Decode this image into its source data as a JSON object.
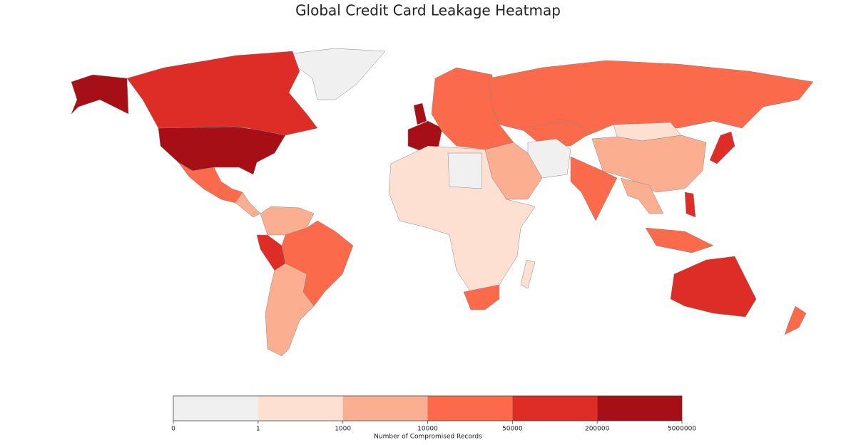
{
  "chart_data": {
    "type": "choropleth",
    "title": "Global Credit Card Leakage Heatmap",
    "legend": {
      "title": "Number of Compromised Records",
      "colors": [
        "#f0f0f0",
        "#fee0d2",
        "#fcae91",
        "#fb6a4a",
        "#de2d26",
        "#a50f15"
      ],
      "ticks": [
        0,
        1,
        1000,
        10000,
        50000,
        200000,
        5000000
      ]
    }
  }
}
